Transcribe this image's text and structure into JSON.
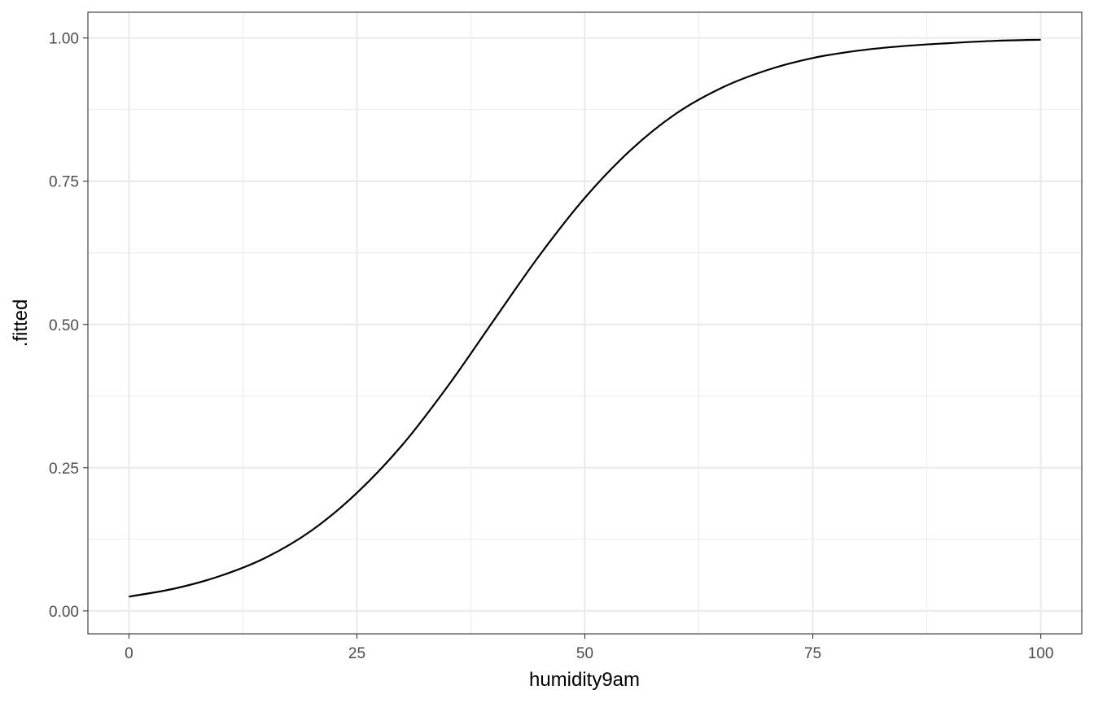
{
  "chart_data": {
    "type": "line",
    "title": "",
    "xlabel": "humidity9am",
    "ylabel": ".fitted",
    "xlim": [
      -4.5,
      104.5
    ],
    "ylim": [
      -0.04,
      1.045
    ],
    "x_ticks": [
      0,
      25,
      50,
      75,
      100
    ],
    "x_tick_labels": [
      "0",
      "25",
      "50",
      "75",
      "100"
    ],
    "y_ticks": [
      0,
      0.25,
      0.5,
      0.75,
      1
    ],
    "y_tick_labels": [
      "0.00",
      "0.25",
      "0.50",
      "0.75",
      "1.00"
    ],
    "grid": true,
    "legend": "none",
    "series": [
      {
        "color": "#000000",
        "x": [
          0,
          5,
          10,
          15,
          20,
          25,
          30,
          35,
          40,
          45,
          50,
          55,
          60,
          65,
          70,
          75,
          80,
          85,
          90,
          95,
          100
        ],
        "y": [
          0.025,
          0.039,
          0.061,
          0.093,
          0.14,
          0.206,
          0.29,
          0.393,
          0.507,
          0.62,
          0.721,
          0.804,
          0.868,
          0.913,
          0.944,
          0.965,
          0.978,
          0.986,
          0.991,
          0.995,
          0.997
        ]
      }
    ]
  }
}
